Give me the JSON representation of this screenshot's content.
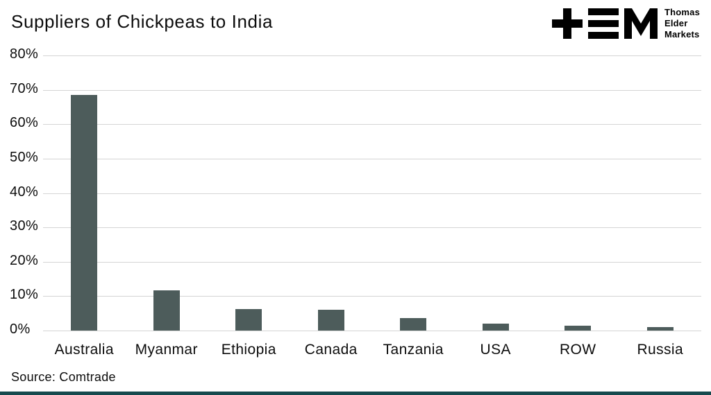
{
  "header": {
    "title": "Suppliers of Chickpeas to India",
    "logo_text": [
      "Thomas",
      "Elder",
      "Markets"
    ]
  },
  "footer": {
    "source": "Source: Comtrade"
  },
  "colors": {
    "bar": "#4d5c5b",
    "grid": "#d4d4d4",
    "axis_text": "#0c0c0c",
    "bottom_bar": "#164a4e",
    "logo": "#000000"
  },
  "chart_data": {
    "type": "bar",
    "title": "Suppliers of Chickpeas to India",
    "categories": [
      "Australia",
      "Myanmar",
      "Ethiopia",
      "Canada",
      "Tanzania",
      "USA",
      "ROW",
      "Russia"
    ],
    "values": [
      68.5,
      11.7,
      6.2,
      6.1,
      3.6,
      2.0,
      1.5,
      1.1
    ],
    "xlabel": "",
    "ylabel": "",
    "ylim": [
      0,
      80
    ],
    "ytick_step": 10,
    "ytick_labels": [
      "0%",
      "10%",
      "20%",
      "30%",
      "40%",
      "50%",
      "60%",
      "70%",
      "80%"
    ],
    "grid": true,
    "legend": false,
    "source": "Source: Comtrade"
  }
}
